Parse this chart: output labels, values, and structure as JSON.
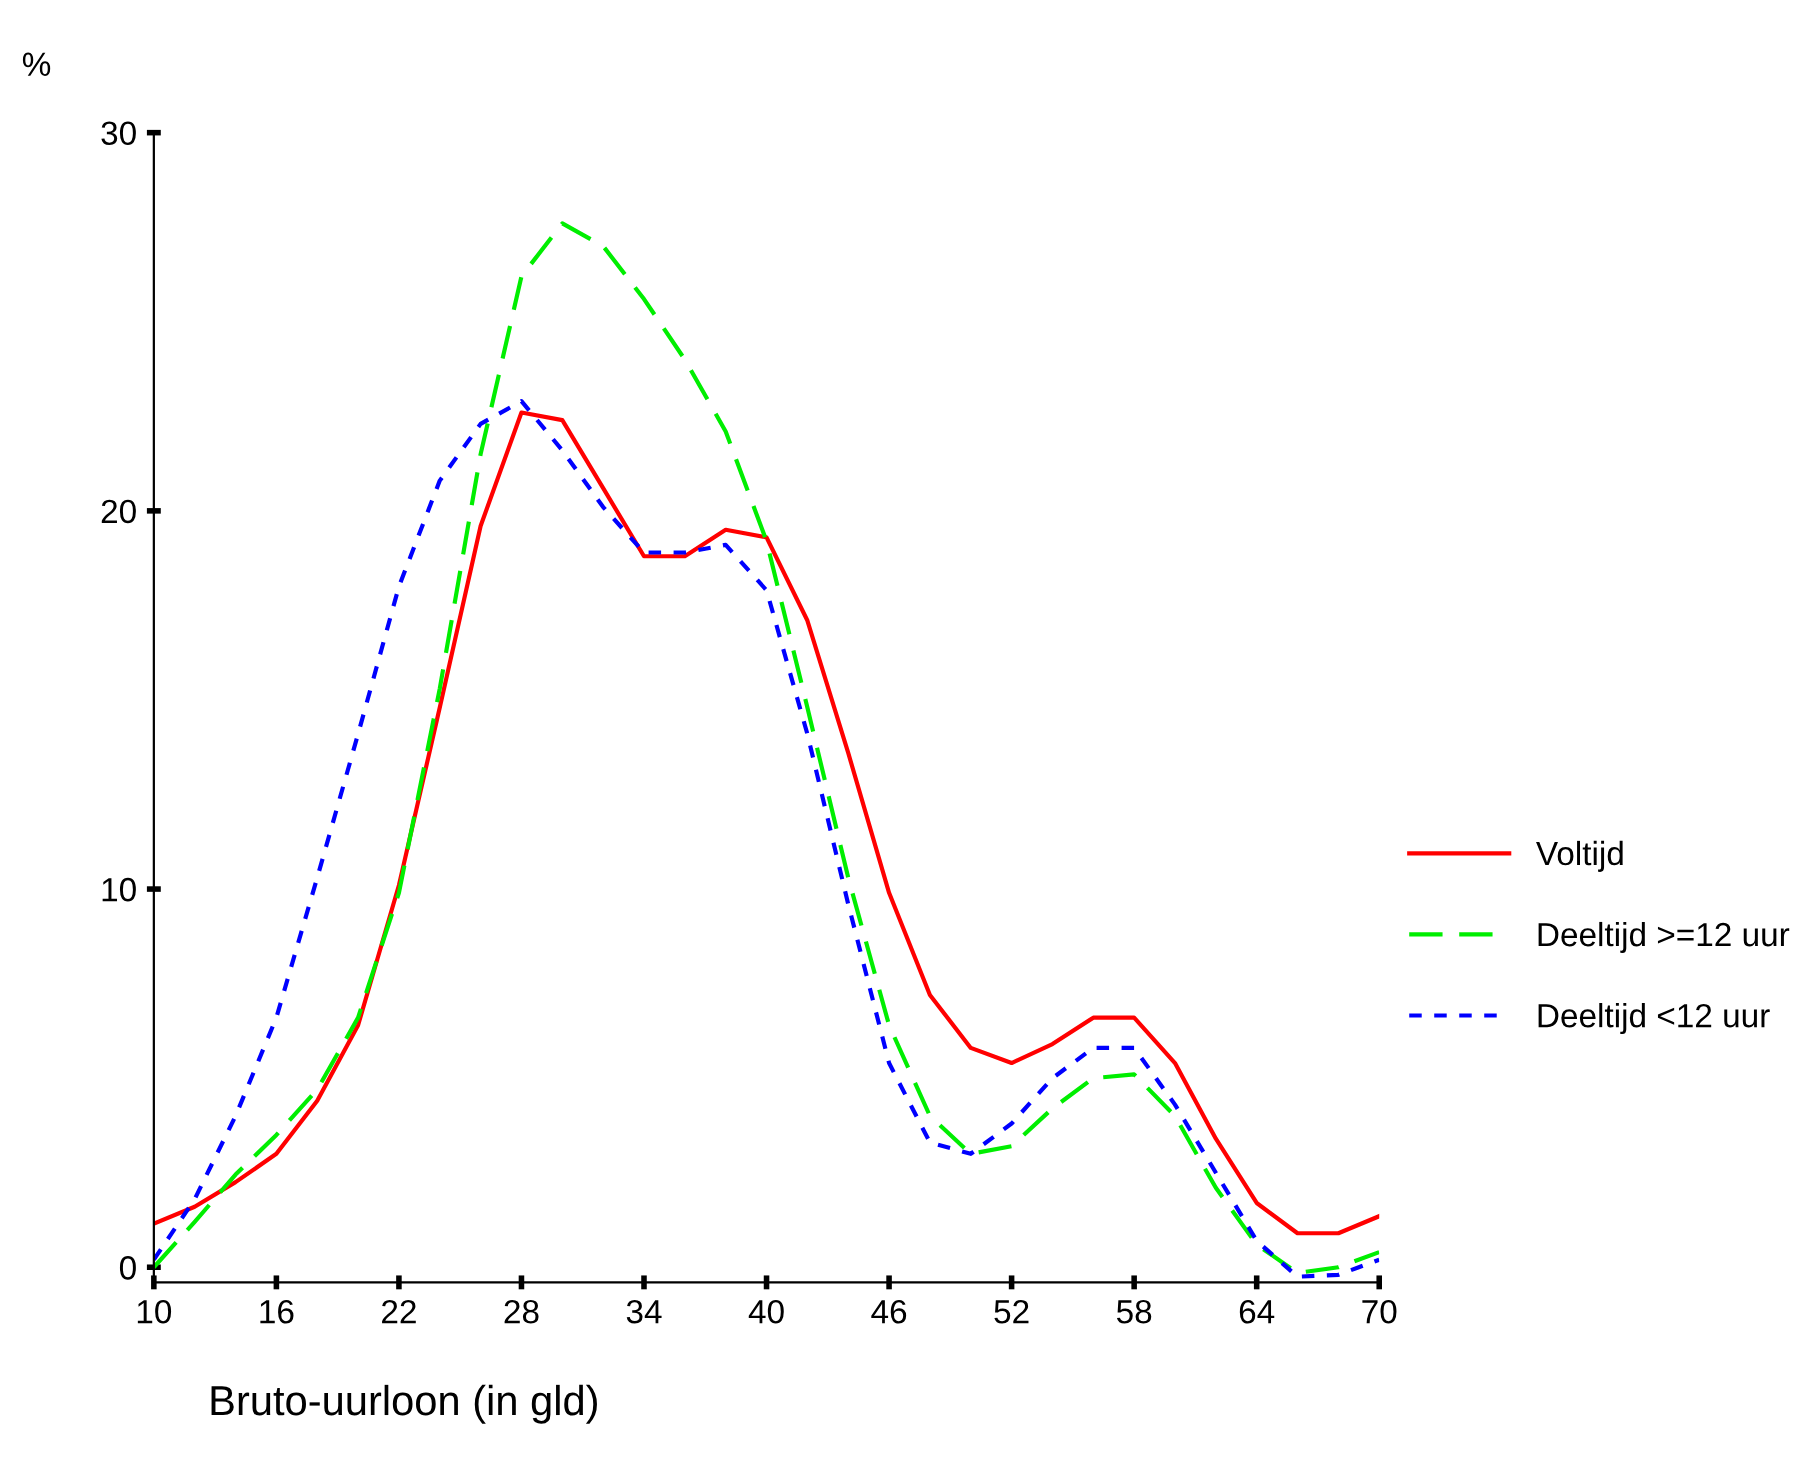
{
  "chart_data": {
    "type": "line",
    "ylabel": "%",
    "xlabel": "Bruto-uurloon (in gld)",
    "x": [
      10,
      12,
      14,
      16,
      18,
      20,
      22,
      24,
      26,
      28,
      30,
      32,
      34,
      36,
      38,
      40,
      42,
      44,
      46,
      48,
      50,
      52,
      54,
      56,
      58,
      60,
      62,
      64,
      66,
      68,
      70
    ],
    "series": [
      {
        "name": "Voltijd",
        "color": "#ff0000",
        "line_style": "solid",
        "values": [
          1.15,
          1.6,
          2.25,
          3.0,
          4.4,
          6.4,
          10.1,
          14.8,
          19.6,
          22.6,
          22.4,
          20.6,
          18.8,
          18.8,
          19.5,
          19.3,
          17.1,
          13.6,
          9.9,
          7.2,
          5.8,
          5.4,
          5.9,
          6.6,
          6.6,
          5.4,
          3.4,
          1.7,
          0.9,
          0.9,
          1.35
        ]
      },
      {
        "name": "Deeltijd >=12 uur",
        "color": "#00ee00",
        "line_style": "dashed",
        "values": [
          0.0,
          1.2,
          2.45,
          3.5,
          4.7,
          6.6,
          9.9,
          15.3,
          21.5,
          26.2,
          27.6,
          27.0,
          25.6,
          24.0,
          22.1,
          19.2,
          14.8,
          10.3,
          6.4,
          4.0,
          3.0,
          3.2,
          4.2,
          5.0,
          5.1,
          4.0,
          2.1,
          0.6,
          -0.15,
          0.0,
          0.4
        ]
      },
      {
        "name": "Deeltijd <12 uur",
        "color": "#0000ff",
        "line_style": "dotted",
        "values": [
          0.2,
          1.8,
          4.0,
          6.6,
          10.3,
          14.1,
          18.0,
          20.8,
          22.3,
          22.9,
          21.6,
          20.1,
          18.9,
          18.9,
          19.1,
          17.9,
          14.1,
          9.6,
          5.4,
          3.3,
          3.0,
          3.8,
          5.0,
          5.8,
          5.8,
          4.3,
          2.5,
          0.7,
          -0.25,
          -0.2,
          0.2
        ]
      }
    ],
    "xlim": [
      10,
      70
    ],
    "xticks": [
      10,
      16,
      22,
      28,
      34,
      40,
      46,
      52,
      58,
      64,
      70
    ],
    "ylim": [
      -0.4,
      30
    ],
    "yticks": [
      0,
      10,
      20,
      30
    ],
    "grid": false,
    "legend": "right",
    "marker": "none"
  }
}
